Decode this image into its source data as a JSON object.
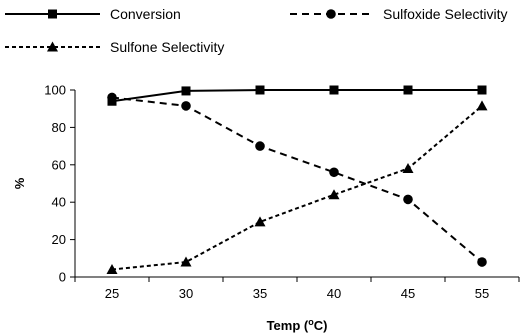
{
  "chart_data": {
    "type": "line",
    "x": [
      25,
      30,
      35,
      40,
      45,
      55
    ],
    "xlabel": "Temp (oC)",
    "xlabel_parts": {
      "before": "Temp (",
      "sup": "o",
      "after": "C)"
    },
    "ylabel": "%",
    "ylim": [
      0,
      100
    ],
    "yticks": [
      0,
      20,
      40,
      60,
      80,
      100
    ],
    "grid": false,
    "legend_position": "top",
    "series": [
      {
        "name": "Conversion",
        "values": [
          94,
          99.5,
          100,
          100,
          100,
          100
        ],
        "marker": "square",
        "line": "solid"
      },
      {
        "name": "Sulfoxide Selectivity",
        "values": [
          96,
          91.5,
          70,
          56,
          41.5,
          8
        ],
        "marker": "circle",
        "line": "long-dash"
      },
      {
        "name": "Sulfone Selectivity",
        "values": [
          4,
          8,
          29.5,
          44,
          58,
          91.5
        ],
        "marker": "triangle",
        "line": "short-dash"
      }
    ]
  }
}
